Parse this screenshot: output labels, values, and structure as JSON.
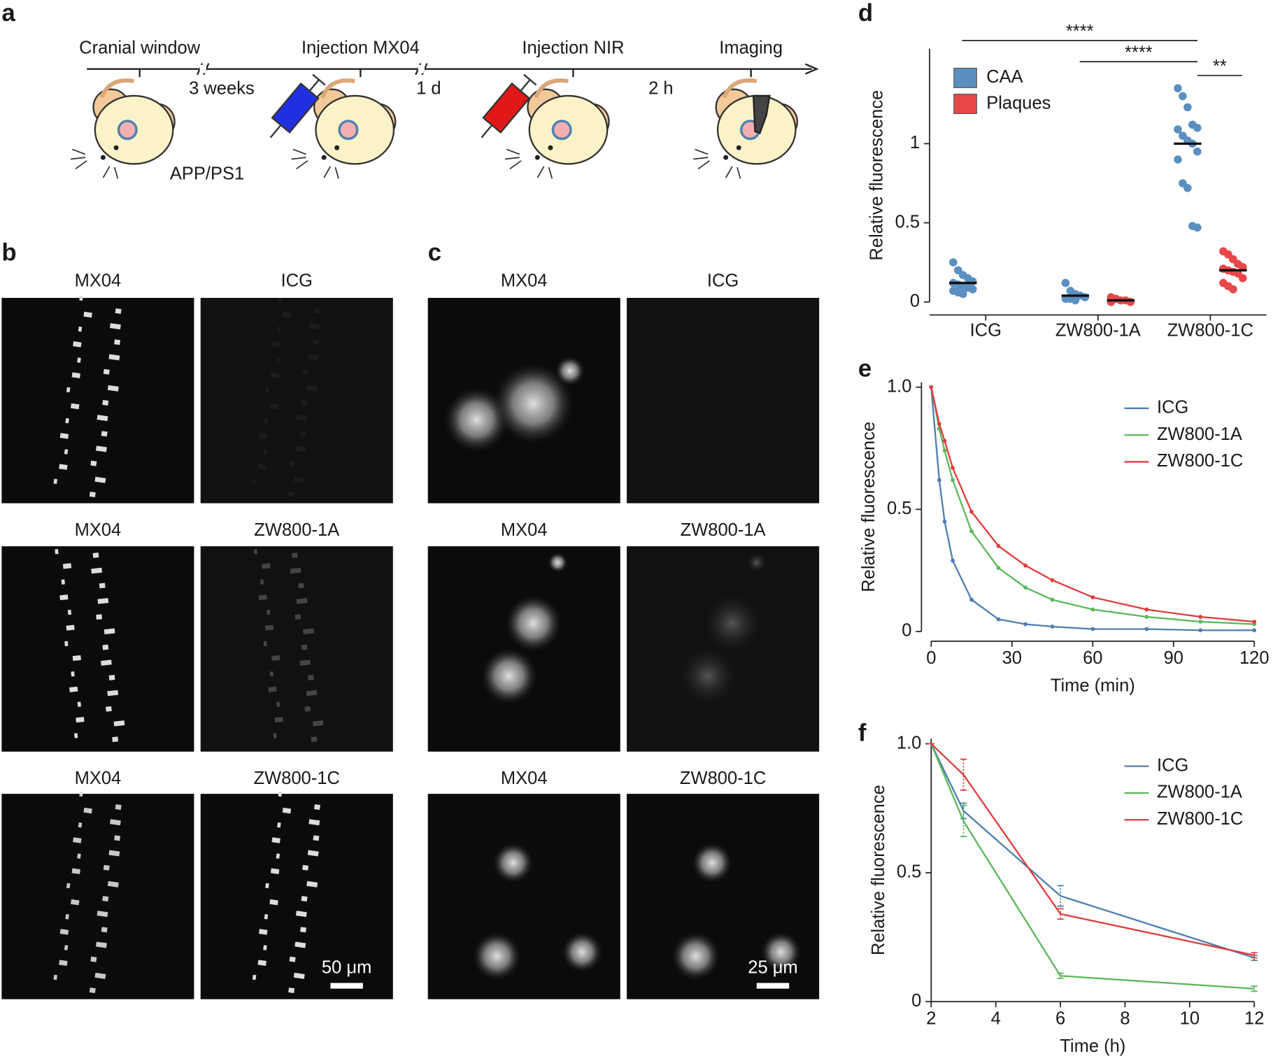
{
  "figure": {
    "panel_labels": [
      "a",
      "b",
      "c",
      "d",
      "e",
      "f"
    ],
    "timeline": {
      "steps": [
        "Cranial window",
        "Injection MX04",
        "Injection NIR",
        "Imaging"
      ],
      "intervals": [
        "3 weeks",
        "1 d",
        "2 h"
      ],
      "mouse_model": "APP/PS1"
    },
    "panel_b": {
      "rows": [
        [
          "MX04",
          "ICG"
        ],
        [
          "MX04",
          "ZW800-1A"
        ],
        [
          "MX04",
          "ZW800-1C"
        ]
      ],
      "scale_bar": "50 μm"
    },
    "panel_c": {
      "rows": [
        [
          "MX04",
          "ICG"
        ],
        [
          "MX04",
          "ZW800-1A"
        ],
        [
          "MX04",
          "ZW800-1C"
        ]
      ],
      "scale_bar": "25 μm"
    }
  },
  "chart_data": [
    {
      "type": "dot",
      "ylabel": "Relative fluorescence",
      "categories": [
        "ICG",
        "ZW800-1A",
        "ZW800-1C"
      ],
      "series": [
        {
          "name": "CAA",
          "color": "#5b8fc0",
          "values": [
            0.12,
            0.04,
            1.0
          ],
          "points": [
            [
              0.25,
              0.2,
              0.17,
              0.15,
              0.13,
              0.12,
              0.11,
              0.1,
              0.09,
              0.08,
              0.07,
              0.06,
              0.05
            ],
            [
              0.12,
              0.07,
              0.05,
              0.04,
              0.03,
              0.02,
              0.02,
              0.01
            ],
            [
              1.35,
              1.3,
              1.23,
              1.12,
              1.1,
              1.09,
              1.05,
              1.02,
              1.0,
              0.95,
              0.9,
              0.75,
              0.72,
              0.48,
              0.47
            ]
          ]
        },
        {
          "name": "Plaques",
          "color": "#e8474a",
          "values": [
            null,
            0.01,
            0.2
          ],
          "points": [
            null,
            [
              0.03,
              0.02,
              0.01,
              0.01,
              0.0,
              0.0
            ],
            [
              0.32,
              0.3,
              0.27,
              0.24,
              0.22,
              0.21,
              0.2,
              0.19,
              0.18,
              0.15,
              0.12,
              0.1,
              0.08
            ]
          ]
        }
      ],
      "ylim": [
        0,
        1.6
      ],
      "yticks": [
        0,
        0.5,
        1
      ],
      "annotations": [
        "****",
        "****",
        "**"
      ]
    },
    {
      "type": "line",
      "xlabel": "Time (min)",
      "ylabel": "Relative fluorescence",
      "x": [
        0,
        3,
        5,
        8,
        15,
        25,
        35,
        45,
        60,
        80,
        100,
        120
      ],
      "series": [
        {
          "name": "ICG",
          "color": "#4f7fb0",
          "values": [
            1.0,
            0.62,
            0.45,
            0.29,
            0.13,
            0.05,
            0.03,
            0.02,
            0.01,
            0.01,
            0.005,
            0.005
          ]
        },
        {
          "name": "ZW800-1A",
          "color": "#5cb85c",
          "values": [
            1.0,
            0.83,
            0.74,
            0.62,
            0.41,
            0.26,
            0.18,
            0.13,
            0.09,
            0.06,
            0.04,
            0.03
          ]
        },
        {
          "name": "ZW800-1C",
          "color": "#e03c3c",
          "values": [
            1.0,
            0.85,
            0.78,
            0.67,
            0.49,
            0.35,
            0.27,
            0.21,
            0.14,
            0.09,
            0.06,
            0.04
          ]
        }
      ],
      "xlim": [
        0,
        120
      ],
      "xticks": [
        0,
        30,
        60,
        90,
        120
      ],
      "ylim": [
        0,
        1.02
      ],
      "yticks": [
        0,
        0.5,
        {
          "value": 1,
          "label": "1.0"
        }
      ]
    },
    {
      "type": "line",
      "xlabel": "Time (h)",
      "ylabel": "Relative fluorescence",
      "x": [
        2,
        3,
        6,
        12
      ],
      "series": [
        {
          "name": "ICG",
          "color": "#4f7fb0",
          "values": [
            1.0,
            0.74,
            0.41,
            0.17
          ],
          "errors": [
            0,
            0.03,
            0.04,
            0.01
          ]
        },
        {
          "name": "ZW800-1A",
          "color": "#5cb85c",
          "values": [
            1.0,
            0.7,
            0.1,
            0.05
          ],
          "errors": [
            0,
            0.06,
            0.01,
            0.01
          ]
        },
        {
          "name": "ZW800-1C",
          "color": "#e03c3c",
          "values": [
            1.0,
            0.88,
            0.34,
            0.18
          ],
          "errors": [
            0,
            0.06,
            0.02,
            0.01
          ]
        }
      ],
      "xlim": [
        2,
        12
      ],
      "xticks": [
        2,
        4,
        6,
        8,
        10,
        12
      ],
      "ylim": [
        0,
        1.02
      ],
      "yticks": [
        0,
        0.5,
        {
          "value": 1,
          "label": "1.0"
        }
      ]
    }
  ]
}
